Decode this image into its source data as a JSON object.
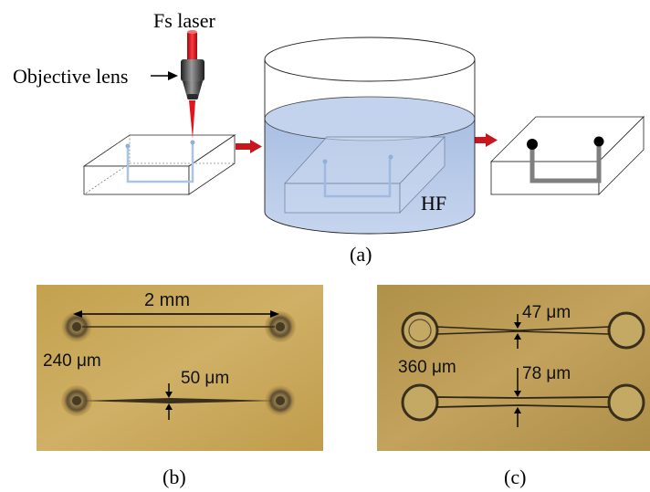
{
  "labels": {
    "laser": "Fs laser",
    "objective": "Objective lens",
    "etchant": "HF",
    "panel_a": "(a)",
    "panel_b": "(b)",
    "panel_c": "(c)"
  },
  "photo_b": {
    "length": "2 mm",
    "hole_diameter": "240 μm",
    "channel_width": "50 μm"
  },
  "photo_c": {
    "hole_diameter": "360 μm",
    "top_channel_width": "47 μm",
    "bottom_channel_width": "78 μm"
  },
  "colors": {
    "laser_red": "#e2131a",
    "arrow_red": "#c8161d",
    "hf_liquid": "#b3c6e6",
    "photo_b_bg": "#c8a552",
    "photo_c_bg": "#b99a52",
    "channel_written": "#a9c4e4",
    "channel_etched": "#7f7f7f"
  }
}
